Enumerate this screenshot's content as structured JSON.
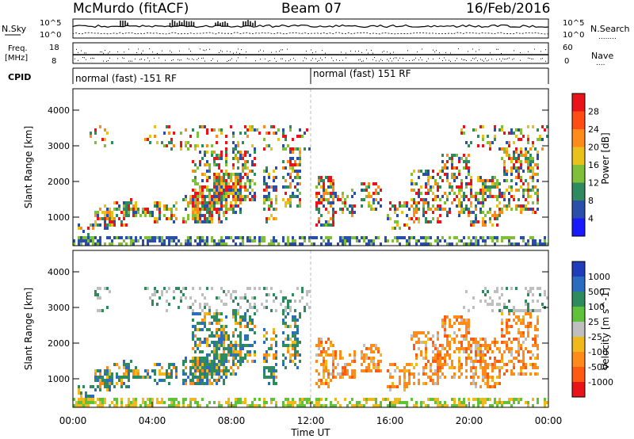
{
  "header": {
    "station": "McMurdo (fitACF)",
    "beam": "Beam 07",
    "date": "16/Feb/2016"
  },
  "top_panels": {
    "nsky_label": "N.Sky",
    "nsearch_label": "N.Search",
    "nsearch_marker": "........",
    "nsky_ticks": [
      "10^5",
      "10^0"
    ],
    "nsearch_ticks": [
      "10^5",
      "10^0"
    ],
    "freq_label_line1": "Freq.",
    "freq_label_line2": "[MHz]",
    "freq_ticks": [
      "18",
      "8"
    ],
    "nave_label": "Nave",
    "nave_marker": "....",
    "nave_ticks": [
      "60",
      "0"
    ],
    "cpid_label": "CPID",
    "cpid_segments": [
      {
        "label": "normal (fast) -151 RF",
        "start_h": 0,
        "end_h": 12
      },
      {
        "label": "normal (fast) 151 RF",
        "start_h": 12,
        "end_h": 24
      }
    ]
  },
  "chart_data": [
    {
      "type": "heatmap",
      "name": "power",
      "xlabel": "",
      "ylabel": "Slant Range [km]",
      "x_range_h": [
        0,
        24
      ],
      "ylim": [
        200,
        4600
      ],
      "y_ticks": [
        1000,
        2000,
        3000,
        4000
      ],
      "colorbar_label": "Power [dB]",
      "colorbar_ticks": [
        "4",
        "8",
        "12",
        "16",
        "20",
        "24",
        "28"
      ],
      "colorbar_range": [
        0,
        32
      ],
      "colors": [
        "#1a1aff",
        "#2a4faa",
        "#2f8a5e",
        "#7fbf3a",
        "#e8c21a",
        "#ff8c1a",
        "#ff4d14",
        "#e8141a"
      ]
    },
    {
      "type": "heatmap",
      "name": "velocity",
      "xlabel": "Time UT",
      "ylabel": "Slant Range [km]",
      "x_range_h": [
        0,
        24
      ],
      "x_ticks": [
        "00:00",
        "04:00",
        "08:00",
        "12:00",
        "16:00",
        "20:00",
        "00:00"
      ],
      "ylim": [
        200,
        4600
      ],
      "y_ticks": [
        1000,
        2000,
        3000,
        4000
      ],
      "colorbar_label": "Velocity [m s^-1]",
      "colorbar_ticks": [
        "1000",
        "500",
        "100",
        "25",
        "-25",
        "-100",
        "-500",
        "-1000"
      ],
      "colors": [
        "#1f3db8",
        "#2a6cc0",
        "#2f8a5e",
        "#5fc23a",
        "#bfbfbf",
        "#f0b81a",
        "#ff8c1a",
        "#ff5a14",
        "#e8141a"
      ]
    }
  ]
}
